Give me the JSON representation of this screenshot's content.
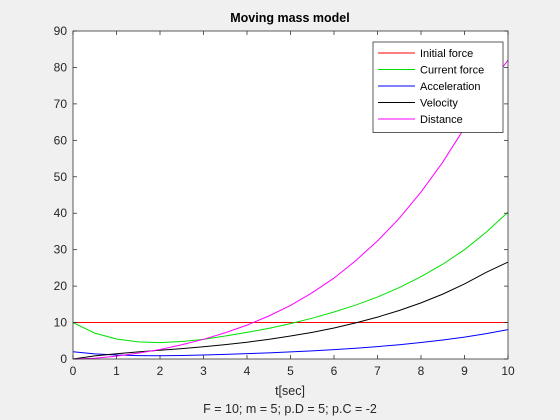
{
  "chart_data": {
    "type": "line",
    "title": "Moving mass model",
    "xlabel": "t[sec]",
    "caption": "F = 10; m = 5; p.D = 5; p.C = -2",
    "xlim": [
      0,
      10
    ],
    "ylim": [
      0,
      90
    ],
    "xticks": [
      0,
      1,
      2,
      3,
      4,
      5,
      6,
      7,
      8,
      9,
      10
    ],
    "yticks": [
      0,
      10,
      20,
      30,
      40,
      50,
      60,
      70,
      80,
      90
    ],
    "legend_position": "top-right",
    "grid": false,
    "x": [
      0,
      0.5,
      1,
      1.5,
      2,
      2.5,
      3,
      3.5,
      4,
      4.5,
      5,
      5.5,
      6,
      6.5,
      7,
      7.5,
      8,
      8.5,
      9,
      9.5,
      10
    ],
    "series": [
      {
        "name": "Initial force",
        "color": "#ff0000",
        "values": [
          10,
          10,
          10,
          10,
          10,
          10,
          10,
          10,
          10,
          10,
          10,
          10,
          10,
          10,
          10,
          10,
          10,
          10,
          10,
          10,
          10
        ]
      },
      {
        "name": "Current force",
        "color": "#00e000",
        "values": [
          10,
          7.1,
          5.5,
          4.7,
          4.5,
          4.8,
          5.4,
          6.3,
          7.3,
          8.4,
          9.7,
          11.2,
          12.9,
          14.8,
          17.0,
          19.6,
          22.6,
          26.0,
          30.0,
          34.8,
          40.3
        ]
      },
      {
        "name": "Acceleration",
        "color": "#0000ff",
        "values": [
          2.0,
          1.4,
          1.1,
          0.94,
          0.9,
          0.96,
          1.08,
          1.26,
          1.46,
          1.68,
          1.94,
          2.24,
          2.58,
          2.96,
          3.4,
          3.92,
          4.52,
          5.2,
          6.0,
          6.96,
          8.06
        ]
      },
      {
        "name": "Velocity",
        "color": "#000000",
        "values": [
          0,
          0.85,
          1.45,
          1.95,
          2.4,
          2.85,
          3.35,
          3.95,
          4.6,
          5.4,
          6.3,
          7.3,
          8.5,
          9.9,
          11.5,
          13.3,
          15.4,
          17.8,
          20.6,
          23.8,
          26.6
        ]
      },
      {
        "name": "Distance",
        "color": "#ff00ff",
        "values": [
          0,
          0.2,
          0.8,
          1.6,
          2.6,
          3.9,
          5.4,
          7.2,
          9.3,
          11.8,
          14.7,
          18.2,
          22.2,
          27.0,
          32.4,
          38.6,
          45.8,
          54.0,
          63.4,
          74.0,
          82.0
        ]
      }
    ]
  }
}
